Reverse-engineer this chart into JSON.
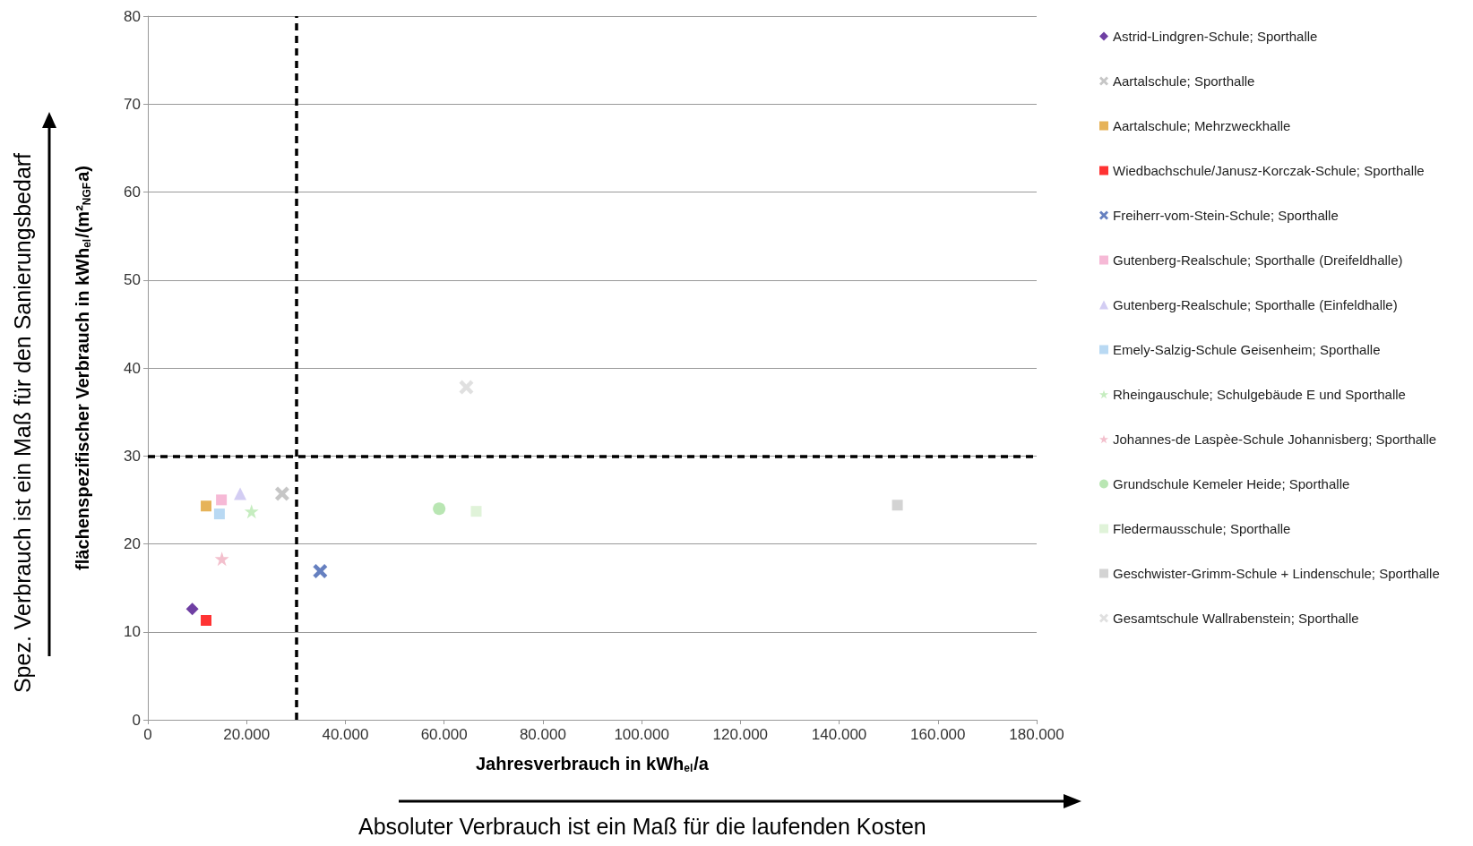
{
  "chart_data": {
    "type": "scatter",
    "xlabel": "Jahresverbrauch in kWh$_{el}$/a",
    "ylabel": "flächenspezifischer Verbrauch in kWh$_{el}$/(m²$_{NGF}$a)",
    "annotations": [
      "Spez. Verbrauch ist ein Maß für den Sanierungsbedarf",
      "Absoluter Verbrauch ist ein Maß für die laufenden Kosten"
    ],
    "xlim": [
      0,
      180000
    ],
    "xticks": [
      {
        "value": 0,
        "label": "0"
      },
      {
        "value": 20000,
        "label": "20.000"
      },
      {
        "value": 40000,
        "label": "40.000"
      },
      {
        "value": 60000,
        "label": "60.000"
      },
      {
        "value": 80000,
        "label": "80.000"
      },
      {
        "value": 100000,
        "label": "100.000"
      },
      {
        "value": 120000,
        "label": "120.000"
      },
      {
        "value": 140000,
        "label": "140.000"
      },
      {
        "value": 160000,
        "label": "160.000"
      },
      {
        "value": 180000,
        "label": "180.000"
      }
    ],
    "ylim": [
      0,
      80
    ],
    "yticks": [
      0,
      10,
      20,
      30,
      40,
      50,
      60,
      70,
      80
    ],
    "grid": "y",
    "legend": "right",
    "ref_lines": [
      {
        "axis": "x",
        "value": 30000,
        "color": "#000000",
        "line_style": "dashed"
      },
      {
        "axis": "y",
        "value": 30,
        "color": "#000000",
        "line_style": "dashed"
      }
    ],
    "series": [
      {
        "name": "Astrid-Lindgren-Schule; Sporthalle",
        "color": "#4b0f8c",
        "marker": "diamond",
        "x": [
          9000
        ],
        "values": [
          12.6
        ]
      },
      {
        "name": "Aartalschule; Sporthalle",
        "color": "#b8b8b8",
        "marker": "cross",
        "x": [
          27200
        ],
        "values": [
          25.7
        ]
      },
      {
        "name": "Aartalschule; Mehrzweckhalle",
        "color": "#e0a030",
        "marker": "square",
        "x": [
          11800
        ],
        "values": [
          24.3
        ]
      },
      {
        "name": "Wiedbachschule/Janusz-Korczak-Schule; Sporthalle",
        "color": "#ff0000",
        "marker": "square",
        "x": [
          11800
        ],
        "values": [
          11.3
        ]
      },
      {
        "name": "Freiherr-vom-Stein-Schule; Sporthalle",
        "color": "#4060b0",
        "marker": "cross",
        "x": [
          34900
        ],
        "values": [
          16.9
        ]
      },
      {
        "name": "Gutenberg-Realschule; Sporthalle (Dreifeldhalle)",
        "color": "#f4a8cc",
        "marker": "square",
        "x": [
          14900
        ],
        "values": [
          25.0
        ]
      },
      {
        "name": "Gutenberg-Realschule; Sporthalle (Einfeldhalle)",
        "color": "#c8c0f0",
        "marker": "triangle",
        "x": [
          18700
        ],
        "values": [
          25.7
        ]
      },
      {
        "name": "Emely-Salzig-Schule Geisenheim; Sporthalle",
        "color": "#a8d0f0",
        "marker": "square",
        "x": [
          14500
        ],
        "values": [
          23.4
        ]
      },
      {
        "name": "Rheingauschule; Schulgebäude E und Sporthalle",
        "color": "#b8e8b0",
        "marker": "star",
        "x": [
          21000
        ],
        "values": [
          23.7
        ]
      },
      {
        "name": "Johannes-de Laspèe-Schule Johannisberg; Sporthalle",
        "color": "#f0b0c0",
        "marker": "star",
        "x": [
          15000
        ],
        "values": [
          18.3
        ]
      },
      {
        "name": "Grundschule Kemeler Heide; Sporthalle",
        "color": "#a8e0a0",
        "marker": "circle",
        "x": [
          59000
        ],
        "values": [
          24.0
        ]
      },
      {
        "name": "Fledermausschule; Sporthalle",
        "color": "#d8f0d0",
        "marker": "square",
        "x": [
          66500
        ],
        "values": [
          23.7
        ]
      },
      {
        "name": "Geschwister-Grimm-Schule + Lindenschule; Sporthalle",
        "color": "#c8c8c8",
        "marker": "square",
        "x": [
          151800
        ],
        "values": [
          24.4
        ]
      },
      {
        "name": "Gesamtschule Wallrabenstein; Sporthalle",
        "color": "#d8d8d8",
        "marker": "cross",
        "x": [
          64500
        ],
        "values": [
          37.8
        ]
      }
    ]
  }
}
